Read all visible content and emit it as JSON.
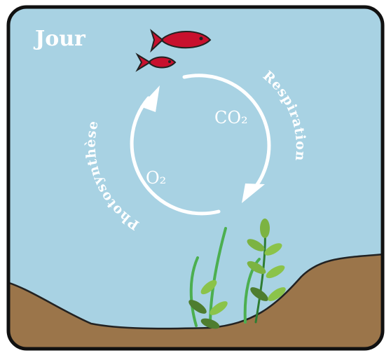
{
  "title": "Jour",
  "cycle": {
    "left_label": "Photosynthèse",
    "right_label": "Respiration",
    "gas_top": "CO₂",
    "gas_bottom": "O₂"
  }
}
